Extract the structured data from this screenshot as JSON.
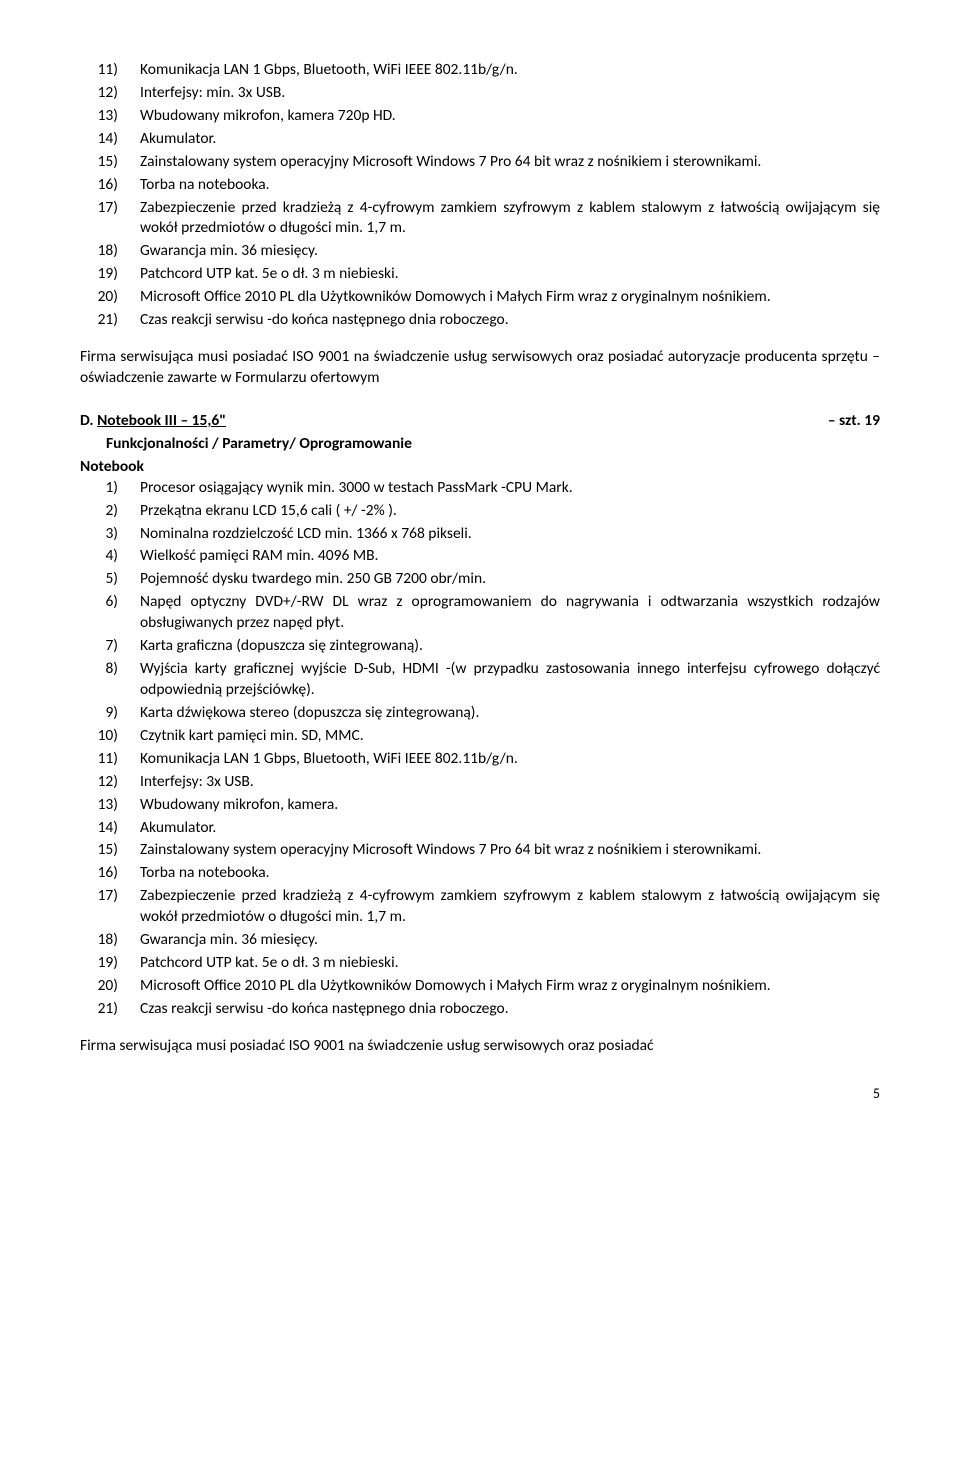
{
  "topList": [
    {
      "num": "11)",
      "text": "Komunikacja LAN 1 Gbps, Bluetooth, WiFi IEEE 802.11b/g/n."
    },
    {
      "num": "12)",
      "text": "Interfejsy: min. 3x USB."
    },
    {
      "num": "13)",
      "text": "Wbudowany mikrofon, kamera 720p HD."
    },
    {
      "num": "14)",
      "text": "Akumulator."
    },
    {
      "num": "15)",
      "text": "Zainstalowany system operacyjny Microsoft Windows 7 Pro 64 bit wraz z nośnikiem i sterownikami."
    },
    {
      "num": "16)",
      "text": "Torba na notebooka."
    },
    {
      "num": "17)",
      "text": "Zabezpieczenie przed kradzieżą z 4-cyfrowym zamkiem szyfrowym z kablem stalowym z łatwością owijającym się wokół przedmiotów o długości min. 1,7 m."
    },
    {
      "num": "18)",
      "text": "Gwarancja min. 36 miesięcy."
    },
    {
      "num": "19)",
      "text": "Patchcord UTP kat. 5e o dł. 3 m niebieski."
    },
    {
      "num": "20)",
      "text": "Microsoft Office 2010 PL dla Użytkowników Domowych i Małych Firm wraz z oryginalnym nośnikiem."
    },
    {
      "num": "21)",
      "text": "Czas reakcji serwisu -do końca następnego dnia roboczego."
    }
  ],
  "para1": "Firma serwisująca musi posiadać ISO 9001 na świadczenie usług serwisowych oraz posiadać autoryzacje producenta sprzętu – oświadczenie zawarte w Formularzu ofertowym",
  "sectionLetter": "D.",
  "sectionTitle": "Notebook III – 15,6\"",
  "sectionQty": "– szt. 19",
  "subHeading": "Funkcjonalności / Parametry/ Oprogramowanie",
  "notebookLabel": "Notebook",
  "bottomList": [
    {
      "num": "1)",
      "text": "Procesor osiągający wynik min. 3000 w testach PassMark -CPU Mark."
    },
    {
      "num": "2)",
      "text": "Przekątna ekranu LCD 15,6 cali ( +/ -2% )."
    },
    {
      "num": "3)",
      "text": "Nominalna rozdzielczość LCD min. 1366 x 768 pikseli."
    },
    {
      "num": "4)",
      "text": "Wielkość pamięci RAM min. 4096 MB."
    },
    {
      "num": "5)",
      "text": "Pojemność dysku twardego min. 250 GB 7200 obr/min."
    },
    {
      "num": "6)",
      "text": "Napęd optyczny DVD+/-RW DL wraz z oprogramowaniem do nagrywania i odtwarzania wszystkich rodzajów obsługiwanych przez napęd płyt."
    },
    {
      "num": "7)",
      "text": "Karta graficzna (dopuszcza się zintegrowaną)."
    },
    {
      "num": "8)",
      "text": "Wyjścia karty graficznej wyjście D-Sub, HDMI -(w przypadku zastosowania innego interfejsu cyfrowego dołączyć odpowiednią przejściówkę)."
    },
    {
      "num": "9)",
      "text": "Karta dźwiękowa stereo (dopuszcza się zintegrowaną)."
    },
    {
      "num": "10)",
      "text": "Czytnik kart pamięci min. SD, MMC."
    },
    {
      "num": "11)",
      "text": "Komunikacja LAN 1 Gbps, Bluetooth, WiFi IEEE 802.11b/g/n."
    },
    {
      "num": "12)",
      "text": "Interfejsy: 3x USB."
    },
    {
      "num": "13)",
      "text": "Wbudowany mikrofon, kamera."
    },
    {
      "num": "14)",
      "text": "Akumulator."
    },
    {
      "num": "15)",
      "text": "Zainstalowany system operacyjny Microsoft Windows 7 Pro 64 bit wraz z nośnikiem i sterownikami."
    },
    {
      "num": "16)",
      "text": "Torba na notebooka."
    },
    {
      "num": "17)",
      "text": "Zabezpieczenie przed kradzieżą z 4-cyfrowym zamkiem szyfrowym z kablem stalowym z łatwością owijającym się wokół przedmiotów o długości min. 1,7 m."
    },
    {
      "num": "18)",
      "text": "Gwarancja min. 36 miesięcy."
    },
    {
      "num": "19)",
      "text": "Patchcord UTP kat. 5e o dł. 3 m niebieski."
    },
    {
      "num": "20)",
      "text": "Microsoft Office 2010 PL dla Użytkowników Domowych i Małych Firm wraz z oryginalnym nośnikiem."
    },
    {
      "num": "21)",
      "text": "Czas reakcji serwisu -do końca następnego dnia roboczego."
    }
  ],
  "para2": "Firma serwisująca musi posiadać ISO 9001 na świadczenie usług serwisowych oraz posiadać",
  "pageNum": "5"
}
